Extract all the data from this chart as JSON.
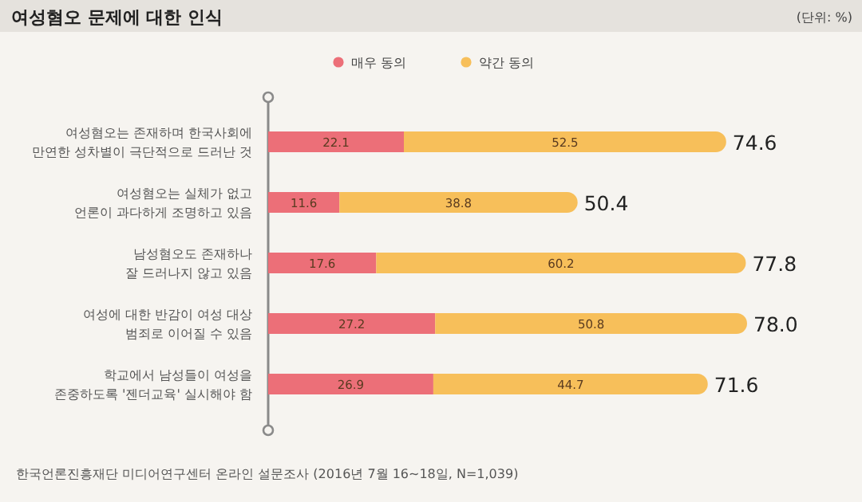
{
  "chart_data": {
    "type": "bar",
    "orientation": "horizontal",
    "stacked": true,
    "title": "여성혐오 문제에 대한 인식",
    "categories": [
      "여성혐오는 존재하며 한국사회에\n만연한 성차별이 극단적으로 드러난 것",
      "여성혐오는 실체가 없고\n언론이 과다하게 조명하고 있음",
      "남성혐오도 존재하나\n잘 드러나지 않고 있음",
      "여성에 대한 반감이 여성 대상\n범죄로 이어질 수 있음",
      "학교에서 남성들이 여성을\n존중하도록 '젠더교육' 실시해야 함"
    ],
    "series": [
      {
        "name": "매우 동의",
        "color": "#ec6f78",
        "values": [
          22.1,
          11.6,
          17.6,
          27.2,
          26.9
        ]
      },
      {
        "name": "약간 동의",
        "color": "#f7bf5a",
        "values": [
          52.5,
          38.8,
          60.2,
          50.8,
          44.7
        ]
      }
    ],
    "totals": [
      "74.6",
      "50.4",
      "77.8",
      "78.0",
      "71.6"
    ],
    "data_labels": true,
    "legend": "top",
    "annotations": [
      "(단위: %)",
      "한국언론진흥재단 미디어연구센터 온라인 설문조사 (2016년 7월 16~18일, N=1,039)"
    ]
  }
}
